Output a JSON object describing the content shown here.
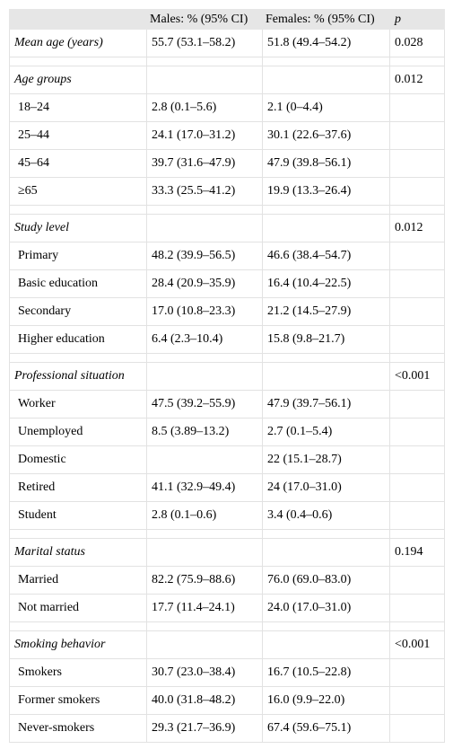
{
  "table": {
    "header": [
      "Males: % (95% CI)",
      "Females: % (95% CI)",
      "p"
    ],
    "sections": [
      {
        "title": "Mean age (years)",
        "values": [
          "55.7 (53.1–58.2)",
          "51.8 (49.4–54.2)",
          "0.028"
        ],
        "rows": []
      },
      {
        "title": "Age groups",
        "values": [
          null,
          null,
          "0.012"
        ],
        "rows": [
          [
            "18–24",
            "2.8 (0.1–5.6)",
            "2.1 (0–4.4)"
          ],
          [
            "25–44",
            "24.1 (17.0–31.2)",
            "30.1 (22.6–37.6)"
          ],
          [
            "45–64",
            "39.7 (31.6–47.9)",
            "47.9 (39.8–56.1)"
          ],
          [
            "≥65",
            "33.3 (25.5–41.2)",
            "19.9 (13.3–26.4)"
          ]
        ]
      },
      {
        "title": "Study level",
        "values": [
          null,
          null,
          "0.012"
        ],
        "rows": [
          [
            "Primary",
            "48.2 (39.9–56.5)",
            "46.6 (38.4–54.7)"
          ],
          [
            "Basic education",
            "28.4 (20.9–35.9)",
            "16.4 (10.4–22.5)"
          ],
          [
            "Secondary",
            "17.0 (10.8–23.3)",
            "21.2 (14.5–27.9)"
          ],
          [
            "Higher education",
            "6.4 (2.3–10.4)",
            "15.8 (9.8–21.7)"
          ]
        ]
      },
      {
        "title": "Professional situation",
        "values": [
          null,
          null,
          "<0.001"
        ],
        "rows": [
          [
            "Worker",
            "47.5 (39.2–55.9)",
            "47.9 (39.7–56.1)"
          ],
          [
            "Unemployed",
            "8.5 (3.89–13.2)",
            "2.7 (0.1–5.4)"
          ],
          [
            "Domestic",
            null,
            "22 (15.1–28.7)"
          ],
          [
            "Retired",
            "41.1 (32.9–49.4)",
            "24 (17.0–31.0)"
          ],
          [
            "Student",
            "2.8 (0.1–0.6)",
            "3.4 (0.4–0.6)"
          ]
        ]
      },
      {
        "title": "Marital status",
        "values": [
          null,
          null,
          "0.194"
        ],
        "rows": [
          [
            "Married",
            "82.2 (75.9–88.6)",
            "76.0 (69.0–83.0)"
          ],
          [
            "Not married",
            "17.7 (11.4–24.1)",
            "24.0 (17.0–31.0)"
          ]
        ]
      },
      {
        "title": "Smoking behavior",
        "values": [
          null,
          null,
          "<0.001"
        ],
        "rows": [
          [
            "Smokers",
            "30.7 (23.0–38.4)",
            "16.7 (10.5–22.8)"
          ],
          [
            "Former smokers",
            "40.0 (31.8–48.2)",
            "16.0 (9.9–22.0)"
          ],
          [
            "Never-smokers",
            "29.3 (21.7–36.9)",
            "67.4 (59.6–75.1)"
          ]
        ]
      }
    ]
  }
}
